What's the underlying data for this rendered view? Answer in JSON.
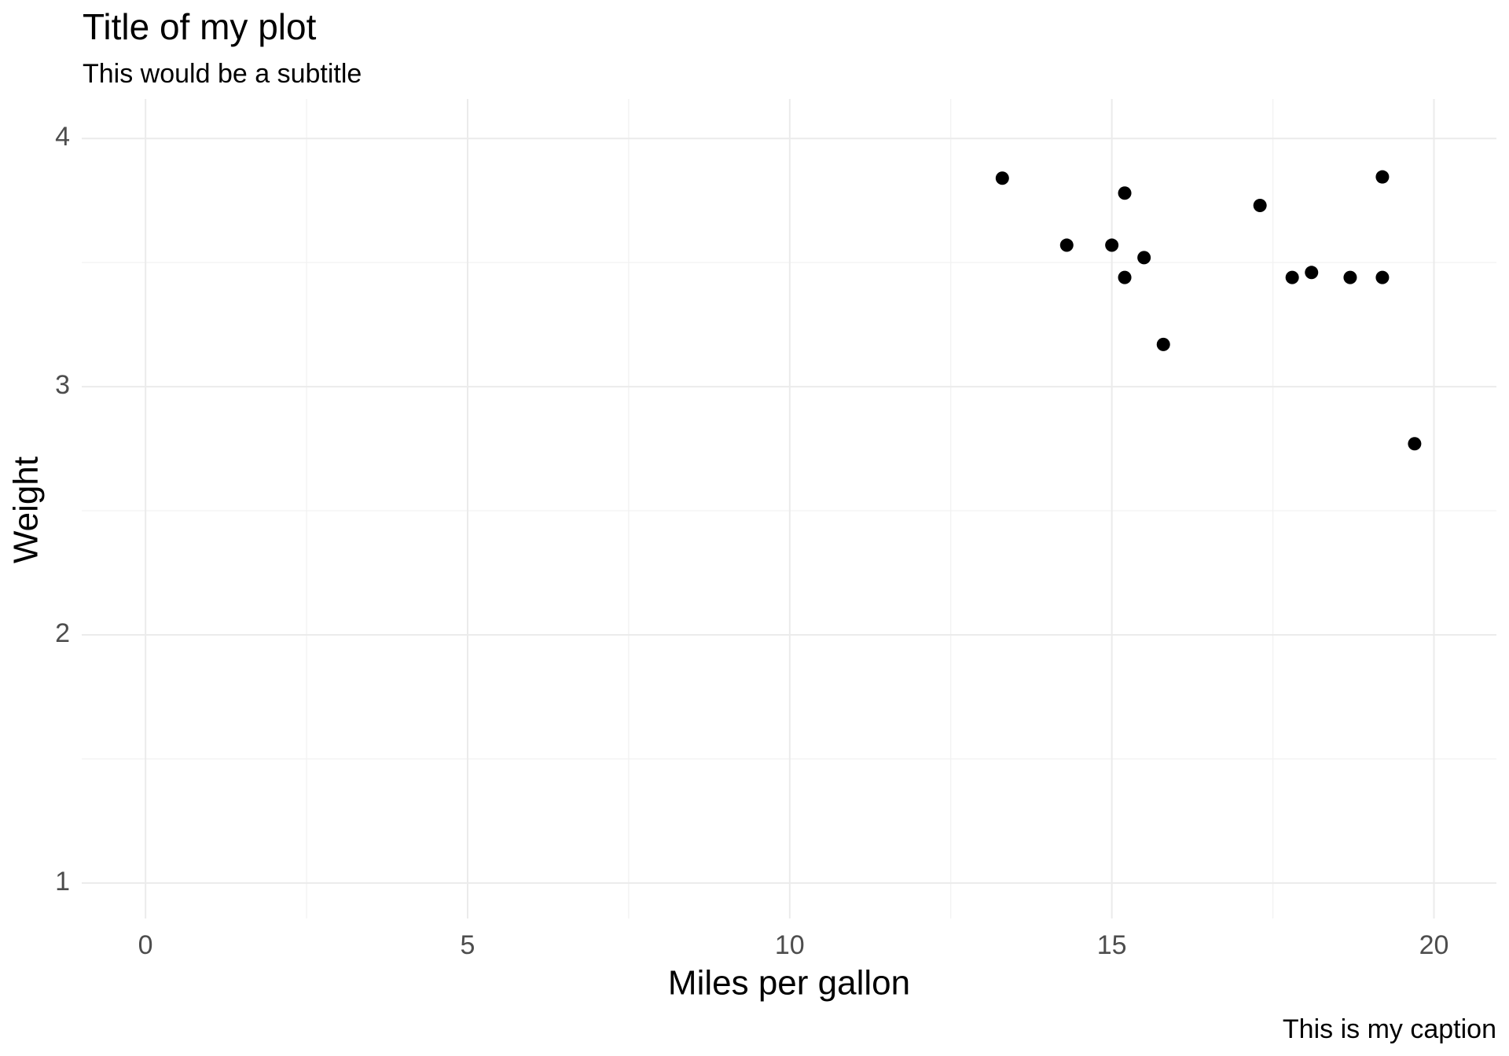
{
  "chart_data": {
    "type": "scatter",
    "title": "Title of my plot",
    "subtitle": "This would be a subtitle",
    "caption": "This is my caption",
    "x_label": "Miles per gallon",
    "y_label": "Weight",
    "x": [
      13.3,
      14.3,
      15.0,
      15.2,
      15.2,
      15.5,
      15.8,
      17.3,
      17.8,
      18.1,
      18.7,
      19.2,
      19.2,
      19.7
    ],
    "y": [
      3.84,
      3.57,
      3.57,
      3.78,
      3.44,
      3.52,
      3.17,
      3.73,
      3.44,
      3.46,
      3.44,
      3.845,
      3.44,
      2.77
    ],
    "color": "#000000",
    "xlim": [
      -0.99,
      20.97
    ],
    "ylim": [
      0.857,
      4.159
    ],
    "xticks": [
      0,
      5,
      10,
      15,
      20
    ],
    "yticks": [
      1,
      2,
      3,
      4
    ],
    "minor_xticks": [
      2.5,
      7.5,
      12.5,
      17.5
    ],
    "minor_yticks": [
      1.5,
      2.5,
      3.5
    ],
    "grid": true
  }
}
